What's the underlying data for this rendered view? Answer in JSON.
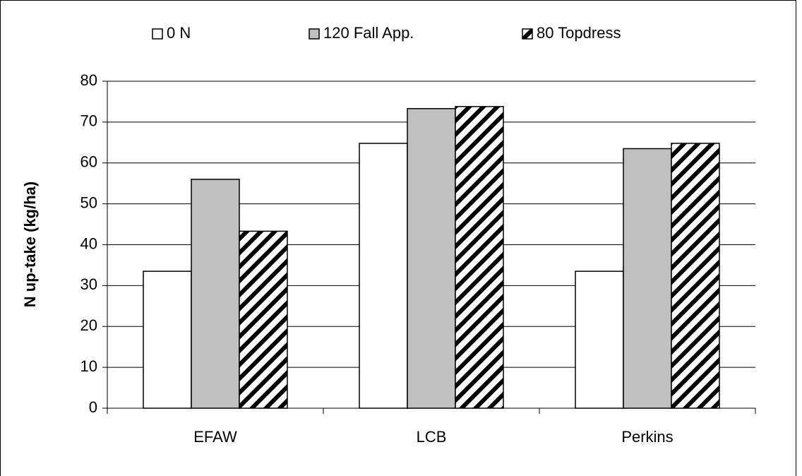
{
  "chart_data": {
    "type": "bar",
    "y_label": "N up-take (kg/ha)",
    "categories": [
      "EFAW",
      "LCB",
      "Perkins"
    ],
    "series": [
      {
        "name": "0 N",
        "color": "#ffffff",
        "pattern": "solid",
        "values": [
          33.5,
          64.8,
          33.5
        ]
      },
      {
        "name": "120 Fall App.",
        "color": "#c0c0c0",
        "pattern": "solid",
        "values": [
          56,
          73.3,
          63.5
        ]
      },
      {
        "name": "80 Topdress",
        "color": "#000000",
        "pattern": "hatch",
        "values": [
          43.3,
          73.8,
          64.8
        ]
      }
    ],
    "ylim": [
      0,
      80
    ],
    "yticks": [
      0,
      10,
      20,
      30,
      40,
      50,
      60,
      70,
      80
    ],
    "grid": true,
    "legend": "top"
  }
}
